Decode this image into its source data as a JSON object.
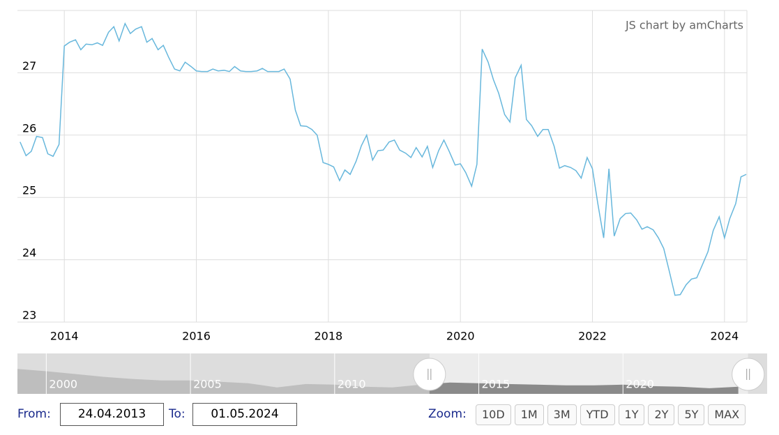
{
  "chart_data": [
    {
      "type": "line",
      "credit": "JS chart by amCharts",
      "color": "#67b7dc",
      "grid": true,
      "x": [
        2013.33,
        2013.42,
        2013.5,
        2013.58,
        2013.67,
        2013.75,
        2013.83,
        2013.92,
        2014.0,
        2014.08,
        2014.17,
        2014.25,
        2014.33,
        2014.42,
        2014.5,
        2014.58,
        2014.67,
        2014.75,
        2014.83,
        2014.92,
        2015.0,
        2015.08,
        2015.17,
        2015.25,
        2015.33,
        2015.42,
        2015.5,
        2015.58,
        2015.67,
        2015.75,
        2015.83,
        2015.92,
        2016.0,
        2016.08,
        2016.17,
        2016.25,
        2016.33,
        2016.42,
        2016.5,
        2016.58,
        2016.67,
        2016.75,
        2016.83,
        2016.92,
        2017.0,
        2017.08,
        2017.17,
        2017.25,
        2017.33,
        2017.42,
        2017.5,
        2017.58,
        2017.67,
        2017.75,
        2017.83,
        2017.92,
        2018.0,
        2018.08,
        2018.17,
        2018.25,
        2018.33,
        2018.42,
        2018.5,
        2018.58,
        2018.67,
        2018.75,
        2018.83,
        2018.92,
        2019.0,
        2019.08,
        2019.17,
        2019.25,
        2019.33,
        2019.42,
        2019.5,
        2019.58,
        2019.67,
        2019.75,
        2019.83,
        2019.92,
        2020.0,
        2020.08,
        2020.17,
        2020.25,
        2020.33,
        2020.42,
        2020.5,
        2020.58,
        2020.67,
        2020.75,
        2020.83,
        2020.92,
        2021.0,
        2021.08,
        2021.17,
        2021.25,
        2021.33,
        2021.42,
        2021.5,
        2021.58,
        2021.67,
        2021.75,
        2021.83,
        2021.92,
        2022.0,
        2022.08,
        2022.17,
        2022.25,
        2022.33,
        2022.42,
        2022.5,
        2022.58,
        2022.67,
        2022.75,
        2022.83,
        2022.92,
        2023.0,
        2023.08,
        2023.17,
        2023.25,
        2023.33,
        2023.42,
        2023.5,
        2023.58,
        2023.67,
        2023.75,
        2023.83,
        2023.92,
        2024.0,
        2024.08,
        2024.17,
        2024.25,
        2024.33
      ],
      "values": [
        25.89,
        25.67,
        25.74,
        25.98,
        25.96,
        25.7,
        25.66,
        25.85,
        27.43,
        27.49,
        27.53,
        27.37,
        27.46,
        27.45,
        27.48,
        27.44,
        27.65,
        27.74,
        27.51,
        27.79,
        27.63,
        27.7,
        27.74,
        27.49,
        27.55,
        27.37,
        27.44,
        27.25,
        27.06,
        27.03,
        27.17,
        27.1,
        27.03,
        27.02,
        27.02,
        27.06,
        27.03,
        27.04,
        27.02,
        27.1,
        27.03,
        27.02,
        27.02,
        27.03,
        27.07,
        27.02,
        27.02,
        27.02,
        27.06,
        26.9,
        26.4,
        26.15,
        26.14,
        26.09,
        26.0,
        25.56,
        25.53,
        25.49,
        25.27,
        25.44,
        25.37,
        25.58,
        25.83,
        26.0,
        25.6,
        25.75,
        25.76,
        25.89,
        25.92,
        25.76,
        25.71,
        25.64,
        25.8,
        25.65,
        25.82,
        25.48,
        25.75,
        25.92,
        25.74,
        25.52,
        25.54,
        25.4,
        25.18,
        25.53,
        27.38,
        27.17,
        26.89,
        26.67,
        26.33,
        26.21,
        26.92,
        27.12,
        26.25,
        26.15,
        25.98,
        26.09,
        26.09,
        25.82,
        25.47,
        25.51,
        25.48,
        25.43,
        25.31,
        25.64,
        25.46,
        24.91,
        24.35,
        25.46,
        24.38,
        24.66,
        24.74,
        24.75,
        24.64,
        24.49,
        24.53,
        24.48,
        24.35,
        24.18,
        23.79,
        23.43,
        23.44,
        23.6,
        23.69,
        23.71,
        23.93,
        24.13,
        24.47,
        24.69,
        24.35,
        24.66,
        24.9,
        25.33,
        25.37
      ],
      "xlim": [
        2013.29,
        2024.34
      ],
      "xticks": [
        2014,
        2016,
        2018,
        2020,
        2022,
        2024
      ],
      "ylim": [
        23,
        28
      ],
      "yticks": [
        23,
        24,
        25,
        26,
        27
      ]
    },
    {
      "type": "area",
      "color": "#8a8a8a",
      "x": [
        1999,
        2000,
        2001,
        2002,
        2003,
        2004,
        2005,
        2006,
        2007,
        2008,
        2009,
        2010,
        2011,
        2012,
        2013,
        2014,
        2015,
        2016,
        2017,
        2018,
        2019,
        2020,
        2021,
        2022,
        2023,
        2024
      ],
      "values": [
        35.4,
        34.0,
        32.3,
        30.5,
        29.2,
        28.3,
        28.3,
        27.5,
        26.6,
        24.0,
        26.1,
        25.7,
        24.4,
        24.0,
        25.7,
        27.0,
        26.6,
        26.1,
        25.7,
        25.3,
        25.3,
        25.7,
        24.8,
        24.4,
        23.5,
        24.4
      ],
      "xlim": [
        1999,
        2025
      ],
      "xticks": [
        2000,
        2005,
        2010,
        2015,
        2020
      ],
      "ylim": [
        20,
        45
      ]
    }
  ],
  "controls": {
    "from_label": "From:",
    "from_value": "24.04.2013",
    "to_label": "To:",
    "to_value": "01.05.2024",
    "zoom_label": "Zoom:",
    "zoom_buttons": [
      "10D",
      "1M",
      "3M",
      "YTD",
      "1Y",
      "2Y",
      "5Y",
      "MAX"
    ]
  }
}
